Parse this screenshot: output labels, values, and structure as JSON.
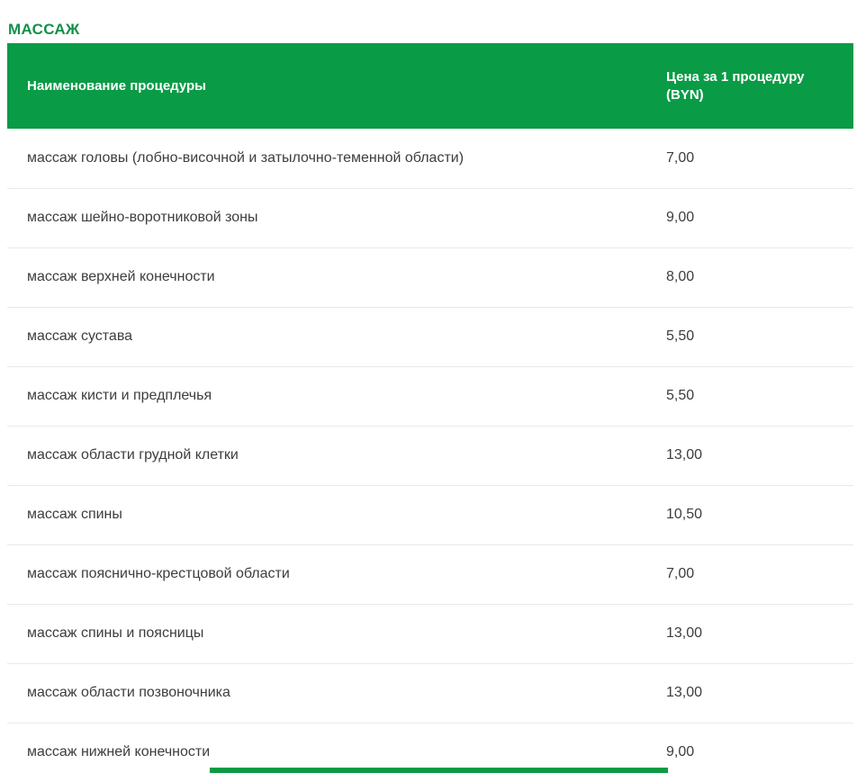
{
  "page": {
    "title": "МАССАЖ"
  },
  "colors": {
    "title_green": "#13904a",
    "header_green": "#0a9b46",
    "row_text": "#3d3d3d",
    "row_border": "#e9e9e9"
  },
  "table": {
    "columns": [
      {
        "label": "Наименование процедуры"
      },
      {
        "label": "Цена за 1 процедуру (BYN)"
      }
    ],
    "rows": [
      {
        "name": "массаж головы (лобно-височной и затылочно-теменной области)",
        "price": "7,00"
      },
      {
        "name": "массаж шейно-воротниковой зоны",
        "price": "9,00"
      },
      {
        "name": "массаж верхней конечности",
        "price": "8,00"
      },
      {
        "name": "массаж сустава",
        "price": "5,50"
      },
      {
        "name": "массаж кисти и предплечья",
        "price": "5,50"
      },
      {
        "name": "массаж области грудной клетки",
        "price": "13,00"
      },
      {
        "name": "массаж спины",
        "price": "10,50"
      },
      {
        "name": "массаж пояснично-крестцовой области",
        "price": "7,00"
      },
      {
        "name": "массаж спины и поясницы",
        "price": "13,00"
      },
      {
        "name": "массаж области позвоночника",
        "price": "13,00"
      },
      {
        "name": "массаж нижней конечности",
        "price": "9,00"
      }
    ]
  }
}
